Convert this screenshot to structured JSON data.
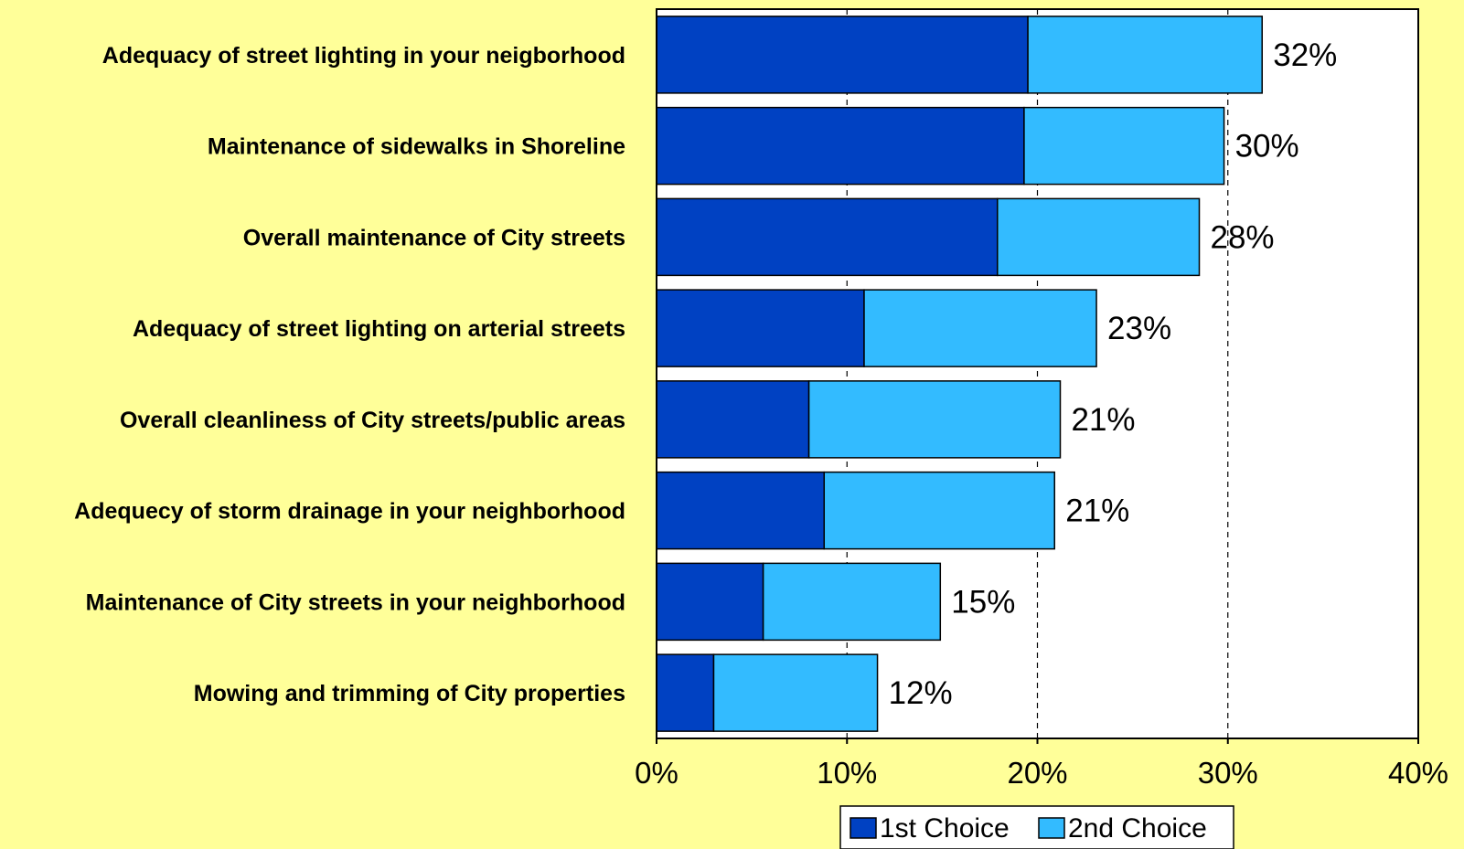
{
  "chart_data": {
    "type": "bar",
    "orientation": "horizontal",
    "stacked": true,
    "title": "",
    "xlabel": "",
    "ylabel": "",
    "categories": [
      "Adequacy of street lighting in your neigborhood",
      "Maintenance of sidewalks in Shoreline",
      "Overall maintenance of City streets",
      "Adequacy of street lighting on arterial streets",
      "Overall cleanliness of City streets/public areas",
      "Adequecy of storm drainage in your neighborhood",
      "Maintenance of City streets in your neighborhood",
      "Mowing and trimming of City properties"
    ],
    "series": [
      {
        "name": "1st Choice",
        "color": "#0041C2",
        "values": [
          19.5,
          19.3,
          17.9,
          10.9,
          8.0,
          8.8,
          5.6,
          3.0
        ]
      },
      {
        "name": "2nd Choice",
        "color": "#33BBFF",
        "values": [
          12.3,
          10.5,
          10.6,
          12.2,
          13.2,
          12.1,
          9.3,
          8.6
        ]
      }
    ],
    "total_labels": [
      "32%",
      "30%",
      "28%",
      "23%",
      "21%",
      "21%",
      "15%",
      "12%"
    ],
    "xlim": [
      0,
      40
    ],
    "xticks": [
      0,
      10,
      20,
      30,
      40
    ],
    "xtick_labels": [
      "0%",
      "10%",
      "20%",
      "30%",
      "40%"
    ],
    "grid": "vertical dashed",
    "legend_position": "bottom"
  }
}
